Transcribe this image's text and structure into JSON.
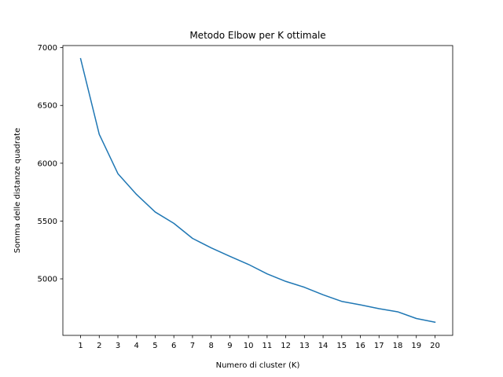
{
  "chart_data": {
    "type": "line",
    "title": "Metodo Elbow per K ottimale",
    "xlabel": "Numero di cluster (K)",
    "ylabel": "Somma delle distanze quadrate",
    "x": [
      1,
      2,
      3,
      4,
      5,
      6,
      7,
      8,
      9,
      10,
      11,
      12,
      13,
      14,
      15,
      16,
      17,
      18,
      19,
      20
    ],
    "series": [
      {
        "values": [
          6905,
          6250,
          5910,
          5730,
          5578,
          5480,
          5350,
          5268,
          5195,
          5125,
          5043,
          4978,
          4927,
          4862,
          4805,
          4775,
          4742,
          4715,
          4657,
          4625
        ],
        "color": "#1f77b4"
      }
    ],
    "xticks": [
      "1",
      "2",
      "3",
      "4",
      "5",
      "6",
      "7",
      "8",
      "9",
      "10",
      "11",
      "12",
      "13",
      "14",
      "15",
      "16",
      "17",
      "18",
      "19",
      "20"
    ],
    "yticks": [
      "5000",
      "5500",
      "6000",
      "6500",
      "7000"
    ],
    "xlim": [
      0.05,
      20.95
    ],
    "ylim": [
      4511,
      7018
    ],
    "grid": false
  }
}
